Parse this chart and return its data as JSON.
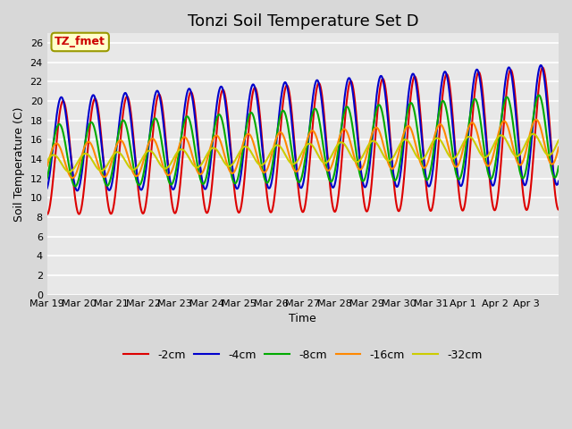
{
  "title": "Tonzi Soil Temperature Set D",
  "xlabel": "Time",
  "ylabel": "Soil Temperature (C)",
  "annotation_text": "TZ_fmet",
  "annotation_color": "#cc0000",
  "annotation_bg": "#ffffcc",
  "annotation_border": "#999900",
  "fig_bg": "#d8d8d8",
  "plot_bg": "#e8e8e8",
  "ylim": [
    0,
    27
  ],
  "yticks": [
    0,
    2,
    4,
    6,
    8,
    10,
    12,
    14,
    16,
    18,
    20,
    22,
    24,
    26
  ],
  "series_colors": [
    "#dd0000",
    "#0000cc",
    "#00aa00",
    "#ff8800",
    "#cccc00"
  ],
  "series_labels": [
    "-2cm",
    "-4cm",
    "-8cm",
    "-16cm",
    "-32cm"
  ],
  "series_linewidths": [
    1.5,
    1.5,
    1.5,
    1.5,
    1.5
  ],
  "num_days": 16,
  "xtick_labels": [
    "Mar 19",
    "Mar 20",
    "Mar 21",
    "Mar 22",
    "Mar 23",
    "Mar 24",
    "Mar 25",
    "Mar 26",
    "Mar 27",
    "Mar 28",
    "Mar 29",
    "Mar 30",
    "Mar 31",
    "Apr 1",
    "Apr 2",
    "Apr 3"
  ],
  "grid_color": "#ffffff",
  "title_fontsize": 13,
  "axis_fontsize": 9,
  "tick_fontsize": 8
}
